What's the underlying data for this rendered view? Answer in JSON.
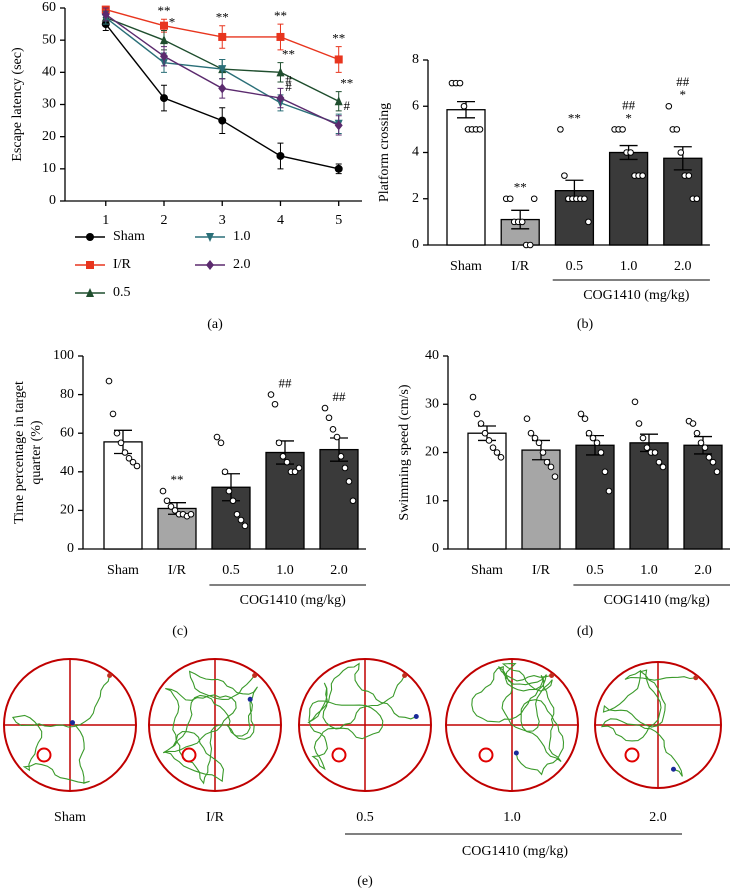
{
  "chart_data": [
    {
      "type": "line",
      "ylabel": "Escape latency (sec)",
      "x": [
        1,
        2,
        3,
        4,
        5
      ],
      "xlim": [
        0.3,
        5.4
      ],
      "xticks": [
        1,
        2,
        3,
        4,
        5
      ],
      "ylim": [
        0,
        60
      ],
      "yticks": [
        0,
        10,
        20,
        30,
        40,
        50,
        60
      ],
      "series": [
        {
          "name": "Sham",
          "color": "#000000",
          "marker": "circle",
          "values": [
            55,
            32,
            25,
            14,
            10
          ],
          "errors": [
            2,
            4,
            4,
            4,
            1.5
          ],
          "annotations": [
            null,
            null,
            null,
            null,
            null
          ]
        },
        {
          "name": "I/R",
          "color": "#e8351e",
          "marker": "square",
          "values": [
            59.5,
            54.5,
            51,
            51,
            44
          ],
          "errors": [
            1,
            2,
            3.5,
            4,
            4
          ],
          "annotations": [
            null,
            "**",
            "**",
            "**",
            "**"
          ]
        },
        {
          "name": "0.5",
          "color": "#1f4e2e",
          "marker": "triangle",
          "values": [
            57,
            50,
            41,
            40,
            31
          ],
          "errors": [
            2,
            3,
            3,
            3,
            3
          ],
          "annotations": [
            null,
            "*",
            null,
            "**",
            "**"
          ]
        },
        {
          "name": "1.0",
          "color": "#2a6f78",
          "marker": "triangle-down",
          "values": [
            57,
            43,
            41,
            30.5,
            24
          ],
          "errors": [
            2,
            3,
            3,
            2.5,
            3
          ],
          "annotations": [
            null,
            null,
            null,
            "#",
            "#"
          ]
        },
        {
          "name": "2.0",
          "color": "#5b2a6e",
          "marker": "diamond",
          "values": [
            58,
            45,
            35,
            32,
            23.5
          ],
          "errors": [
            2,
            3,
            3,
            3,
            3
          ],
          "annotations": [
            null,
            null,
            null,
            "#",
            null
          ]
        }
      ]
    },
    {
      "type": "bar",
      "ylabel": "Platform crossing",
      "group_label": "COG1410 (mg/kg)",
      "categories": [
        "Sham",
        "I/R",
        "0.5",
        "1.0",
        "2.0"
      ],
      "values": [
        5.85,
        1.1,
        2.35,
        4.0,
        3.75
      ],
      "errors": [
        0.35,
        0.4,
        0.45,
        0.3,
        0.5
      ],
      "colors": [
        "#ffffff",
        "#a6a6a6",
        "#3a3a3a",
        "#3a3a3a",
        "#3a3a3a"
      ],
      "points": [
        [
          7,
          7,
          7,
          6,
          5,
          5,
          5,
          5
        ],
        [
          2,
          2,
          1,
          1,
          1,
          0,
          0,
          2
        ],
        [
          5,
          3,
          2,
          2,
          2,
          2,
          2,
          1
        ],
        [
          5,
          5,
          5,
          4,
          4,
          3,
          3,
          3
        ],
        [
          6,
          5,
          5,
          4,
          3,
          3,
          2,
          2
        ]
      ],
      "annotations": [
        [],
        [
          "**"
        ],
        [
          "**"
        ],
        [
          "##",
          "*"
        ],
        [
          "##",
          "*"
        ]
      ],
      "ylim": [
        0,
        8
      ],
      "yticks": [
        0,
        2,
        4,
        6,
        8
      ]
    },
    {
      "type": "bar",
      "ylabel": [
        "Time percentage in target",
        "quarter (%)"
      ],
      "group_label": "COG1410 (mg/kg)",
      "categories": [
        "Sham",
        "I/R",
        "0.5",
        "1.0",
        "2.0"
      ],
      "values": [
        55.5,
        21,
        32,
        50,
        51.5
      ],
      "errors": [
        6,
        3,
        7,
        6,
        6
      ],
      "colors": [
        "#ffffff",
        "#a6a6a6",
        "#3a3a3a",
        "#3a3a3a",
        "#3a3a3a"
      ],
      "points": [
        [
          87,
          70,
          60,
          55,
          50,
          47,
          45,
          43
        ],
        [
          30,
          25,
          22,
          20,
          18,
          18,
          17,
          18
        ],
        [
          58,
          55,
          40,
          30,
          25,
          18,
          15,
          12
        ],
        [
          80,
          75,
          55,
          48,
          45,
          40,
          40,
          42
        ],
        [
          73,
          68,
          62,
          58,
          48,
          42,
          35,
          25
        ]
      ],
      "annotations": [
        [],
        [
          "**"
        ],
        [],
        [
          "##"
        ],
        [
          "##"
        ]
      ],
      "ylim": [
        0,
        100
      ],
      "yticks": [
        0,
        20,
        40,
        60,
        80,
        100
      ]
    },
    {
      "type": "bar",
      "ylabel": "Swimming speed (cm/s)",
      "group_label": "COG1410 (mg/kg)",
      "categories": [
        "Sham",
        "I/R",
        "0.5",
        "1.0",
        "2.0"
      ],
      "values": [
        24,
        20.5,
        21.5,
        22,
        21.5
      ],
      "errors": [
        1.5,
        2,
        2,
        1.8,
        1.8
      ],
      "colors": [
        "#ffffff",
        "#a6a6a6",
        "#3a3a3a",
        "#3a3a3a",
        "#3a3a3a"
      ],
      "points": [
        [
          31.5,
          28,
          26,
          24,
          22.5,
          21,
          20,
          19
        ],
        [
          27,
          24,
          23,
          22,
          20,
          18,
          17,
          15
        ],
        [
          28,
          27,
          24,
          23,
          22,
          20,
          16,
          12
        ],
        [
          30.5,
          26,
          23,
          21,
          20,
          20,
          18,
          17
        ],
        [
          26.5,
          26,
          24,
          22,
          21,
          19,
          18,
          16
        ]
      ],
      "annotations": [
        [],
        [],
        [],
        [],
        []
      ],
      "ylim": [
        0,
        40
      ],
      "yticks": [
        0,
        10,
        20,
        30,
        40
      ]
    }
  ],
  "panel_labels": [
    "(a)",
    "(b)",
    "(c)",
    "(d)",
    "(e)"
  ],
  "tracks": {
    "labels": [
      "Sham",
      "I/R",
      "0.5",
      "1.0",
      "2.0"
    ],
    "group_label": "COG1410 (mg/kg)"
  }
}
